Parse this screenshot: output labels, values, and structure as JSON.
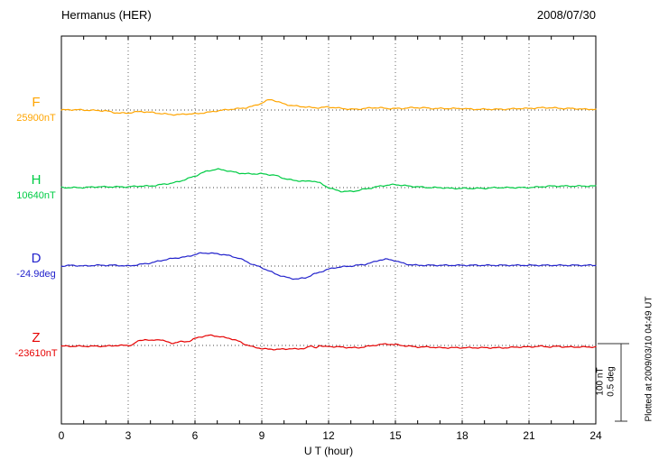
{
  "header": {
    "title": "Hermanus (HER)",
    "date": "2008/07/30"
  },
  "footer": {
    "plotted_at": "Plotted at 2009/03/10 04:49 UT"
  },
  "chart_data": {
    "type": "line",
    "title": "Hermanus (HER)",
    "date": "2008/07/30",
    "xlabel": "U T (hour)",
    "x_range": [
      0,
      24
    ],
    "x_ticks": [
      0,
      3,
      6,
      9,
      12,
      15,
      18,
      21,
      24
    ],
    "grid": "vertical dotted lines at 3-hour intervals; dotted horizontal baseline per channel",
    "legend_position": "left channel labels",
    "scale_bar": {
      "labels": [
        "100 nT",
        "0.5 deg"
      ],
      "span_units": 100
    },
    "series": [
      {
        "name": "F",
        "base_label": "25900nT",
        "base_value": 25900,
        "unit": "nT",
        "color": "#FFA500",
        "points": [
          [
            0,
            0
          ],
          [
            0.5,
            0.5
          ],
          [
            1,
            0
          ],
          [
            1.5,
            -0.5
          ],
          [
            2,
            -1
          ],
          [
            2.3,
            -3
          ],
          [
            2.6,
            -4
          ],
          [
            3,
            -4
          ],
          [
            3.3,
            -2.5
          ],
          [
            3.6,
            -2
          ],
          [
            4,
            -3
          ],
          [
            4.3,
            -4
          ],
          [
            4.6,
            -5
          ],
          [
            5,
            -6
          ],
          [
            5.3,
            -6
          ],
          [
            5.6,
            -5
          ],
          [
            6,
            -5
          ],
          [
            6.3,
            -4
          ],
          [
            6.6,
            -3
          ],
          [
            7,
            -1
          ],
          [
            7.3,
            0
          ],
          [
            7.6,
            1
          ],
          [
            8,
            2
          ],
          [
            8.3,
            3
          ],
          [
            8.6,
            5
          ],
          [
            9,
            9
          ],
          [
            9.2,
            12
          ],
          [
            9.4,
            14
          ],
          [
            9.6,
            12
          ],
          [
            9.8,
            10
          ],
          [
            10,
            8
          ],
          [
            10.3,
            6
          ],
          [
            10.6,
            5
          ],
          [
            11,
            4
          ],
          [
            11.3,
            3
          ],
          [
            11.6,
            3
          ],
          [
            12,
            4
          ],
          [
            12.3,
            3
          ],
          [
            12.6,
            2
          ],
          [
            13,
            1
          ],
          [
            13.3,
            1
          ],
          [
            13.6,
            2
          ],
          [
            14,
            3
          ],
          [
            14.3,
            3
          ],
          [
            14.6,
            2
          ],
          [
            15,
            2
          ],
          [
            15.3,
            2
          ],
          [
            15.6,
            3
          ],
          [
            16,
            3
          ],
          [
            16.3,
            3
          ],
          [
            16.6,
            2
          ],
          [
            17,
            2
          ],
          [
            17.5,
            2
          ],
          [
            18,
            2
          ],
          [
            18.5,
            1
          ],
          [
            19,
            1
          ],
          [
            19.5,
            1
          ],
          [
            20,
            1
          ],
          [
            20.5,
            2
          ],
          [
            21,
            2
          ],
          [
            21.5,
            3
          ],
          [
            22,
            3
          ],
          [
            22.5,
            2
          ],
          [
            23,
            2
          ],
          [
            23.5,
            1
          ],
          [
            24,
            1
          ]
        ]
      },
      {
        "name": "H",
        "base_label": "10640nT",
        "base_value": 10640,
        "unit": "nT",
        "color": "#00CC44",
        "points": [
          [
            0,
            0
          ],
          [
            0.5,
            0
          ],
          [
            1,
            0
          ],
          [
            1.5,
            1
          ],
          [
            2,
            1
          ],
          [
            2.5,
            1
          ],
          [
            3,
            1
          ],
          [
            3.5,
            2
          ],
          [
            4,
            2
          ],
          [
            4.5,
            4
          ],
          [
            5,
            6
          ],
          [
            5.3,
            8
          ],
          [
            5.6,
            11
          ],
          [
            6,
            15
          ],
          [
            6.3,
            19
          ],
          [
            6.6,
            22
          ],
          [
            7,
            24
          ],
          [
            7.3,
            23
          ],
          [
            7.6,
            21
          ],
          [
            8,
            19
          ],
          [
            8.3,
            18
          ],
          [
            8.6,
            18
          ],
          [
            9,
            18
          ],
          [
            9.3,
            17
          ],
          [
            9.6,
            16
          ],
          [
            10,
            12
          ],
          [
            10.3,
            10
          ],
          [
            10.6,
            9
          ],
          [
            11,
            8
          ],
          [
            11.2,
            9
          ],
          [
            11.4,
            8
          ],
          [
            11.6,
            6
          ],
          [
            12,
            0
          ],
          [
            12.3,
            -3
          ],
          [
            12.6,
            -5
          ],
          [
            13,
            -5
          ],
          [
            13.3,
            -4
          ],
          [
            13.6,
            -2
          ],
          [
            14,
            0
          ],
          [
            14.3,
            2
          ],
          [
            14.6,
            3
          ],
          [
            15,
            4
          ],
          [
            15.3,
            3
          ],
          [
            15.6,
            2
          ],
          [
            16,
            1
          ],
          [
            16.5,
            0
          ],
          [
            17,
            0
          ],
          [
            17.5,
            -1
          ],
          [
            18,
            -1
          ],
          [
            18.5,
            -1
          ],
          [
            19,
            -1
          ],
          [
            19.5,
            0
          ],
          [
            20,
            0
          ],
          [
            20.5,
            0
          ],
          [
            21,
            0
          ],
          [
            21.5,
            1
          ],
          [
            22,
            2
          ],
          [
            22.5,
            2
          ],
          [
            23,
            2
          ],
          [
            23.5,
            2
          ],
          [
            24,
            2
          ]
        ]
      },
      {
        "name": "D",
        "base_label": "-24.9deg",
        "base_value": -24.9,
        "unit": "deg",
        "color": "#2222CC",
        "points": [
          [
            0,
            0
          ],
          [
            0.5,
            1
          ],
          [
            1,
            0
          ],
          [
            1.5,
            1
          ],
          [
            2,
            1
          ],
          [
            2.5,
            1
          ],
          [
            3,
            0
          ],
          [
            3.5,
            2
          ],
          [
            4,
            4
          ],
          [
            4.3,
            6
          ],
          [
            4.6,
            8
          ],
          [
            5,
            10
          ],
          [
            5.3,
            11
          ],
          [
            5.6,
            12
          ],
          [
            6,
            15
          ],
          [
            6.3,
            17
          ],
          [
            6.6,
            17
          ],
          [
            7,
            16
          ],
          [
            7.3,
            15
          ],
          [
            7.6,
            13
          ],
          [
            8,
            10
          ],
          [
            8.3,
            6
          ],
          [
            8.6,
            2
          ],
          [
            9,
            -2
          ],
          [
            9.3,
            -6
          ],
          [
            9.6,
            -10
          ],
          [
            10,
            -14
          ],
          [
            10.3,
            -16
          ],
          [
            10.6,
            -17
          ],
          [
            11,
            -15
          ],
          [
            11.3,
            -11
          ],
          [
            11.6,
            -8
          ],
          [
            12,
            -4
          ],
          [
            12.3,
            -2
          ],
          [
            12.6,
            -1
          ],
          [
            13,
            0
          ],
          [
            13.3,
            1
          ],
          [
            13.6,
            2
          ],
          [
            14,
            5
          ],
          [
            14.3,
            8
          ],
          [
            14.6,
            9
          ],
          [
            15,
            7
          ],
          [
            15.3,
            4
          ],
          [
            15.6,
            2
          ],
          [
            16,
            1
          ],
          [
            16.5,
            1
          ],
          [
            17,
            1
          ],
          [
            17.5,
            1
          ],
          [
            18,
            1
          ],
          [
            18.5,
            1
          ],
          [
            19,
            1
          ],
          [
            19.5,
            1
          ],
          [
            20,
            1
          ],
          [
            20.5,
            1
          ],
          [
            21,
            1
          ],
          [
            21.5,
            1
          ],
          [
            22,
            1
          ],
          [
            22.5,
            1
          ],
          [
            23,
            1
          ],
          [
            23.5,
            1
          ],
          [
            24,
            1
          ]
        ]
      },
      {
        "name": "Z",
        "base_label": "-23610nT",
        "base_value": -23610,
        "unit": "nT",
        "color": "#E60000",
        "points": [
          [
            0,
            -1
          ],
          [
            0.5,
            -1
          ],
          [
            1,
            -1
          ],
          [
            1.5,
            -1
          ],
          [
            2,
            -1
          ],
          [
            2.5,
            0
          ],
          [
            3,
            0
          ],
          [
            3.2,
            1
          ],
          [
            3.4,
            5
          ],
          [
            3.6,
            7
          ],
          [
            3.8,
            8
          ],
          [
            4,
            6
          ],
          [
            4.2,
            7
          ],
          [
            4.4,
            8
          ],
          [
            4.6,
            6
          ],
          [
            4.8,
            4
          ],
          [
            5,
            3
          ],
          [
            5.2,
            4
          ],
          [
            5.4,
            5
          ],
          [
            5.6,
            5
          ],
          [
            5.8,
            6
          ],
          [
            6,
            9
          ],
          [
            6.2,
            11
          ],
          [
            6.4,
            12
          ],
          [
            6.6,
            13
          ],
          [
            6.8,
            13
          ],
          [
            7,
            12
          ],
          [
            7.2,
            11
          ],
          [
            7.4,
            10
          ],
          [
            7.6,
            9
          ],
          [
            7.8,
            7
          ],
          [
            8,
            5
          ],
          [
            8.2,
            2
          ],
          [
            8.4,
            0
          ],
          [
            8.6,
            -2
          ],
          [
            8.8,
            -3
          ],
          [
            9,
            -4
          ],
          [
            9.3,
            -5
          ],
          [
            9.6,
            -5
          ],
          [
            10,
            -5
          ],
          [
            10.3,
            -4
          ],
          [
            10.6,
            -5
          ],
          [
            11,
            -3
          ],
          [
            11.2,
            -1
          ],
          [
            11.4,
            -3
          ],
          [
            11.6,
            0
          ],
          [
            11.8,
            -2
          ],
          [
            12,
            -1
          ],
          [
            12.3,
            -2
          ],
          [
            12.6,
            -2
          ],
          [
            13,
            -3
          ],
          [
            13.3,
            -3
          ],
          [
            13.6,
            -2
          ],
          [
            14,
            0
          ],
          [
            14.3,
            1
          ],
          [
            14.6,
            2
          ],
          [
            15,
            1
          ],
          [
            15.3,
            0
          ],
          [
            15.6,
            -1
          ],
          [
            16,
            -2
          ],
          [
            16.5,
            -2
          ],
          [
            17,
            -3
          ],
          [
            17.5,
            -3
          ],
          [
            18,
            -3
          ],
          [
            18.5,
            -3
          ],
          [
            19,
            -3
          ],
          [
            19.5,
            -3
          ],
          [
            20,
            -3
          ],
          [
            20.5,
            -2
          ],
          [
            21,
            -2
          ],
          [
            21.5,
            -1
          ],
          [
            22,
            -2
          ],
          [
            22.3,
            -1
          ],
          [
            22.6,
            -2
          ],
          [
            23,
            -2
          ],
          [
            23.5,
            -2
          ],
          [
            24,
            -2
          ]
        ]
      }
    ]
  }
}
